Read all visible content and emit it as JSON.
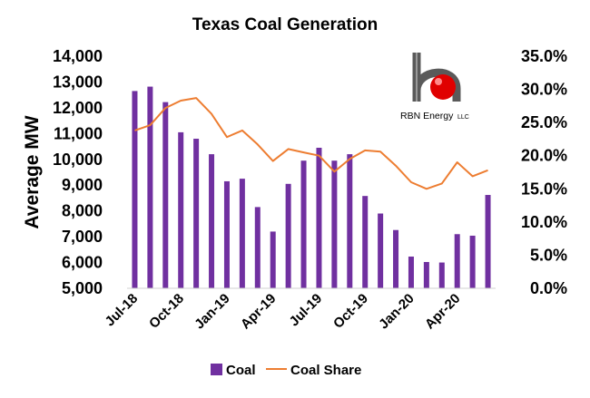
{
  "chart_data": {
    "type": "bar+line",
    "title": "Texas Coal Generation",
    "ylabel": "Average MW",
    "ylabel_right": "",
    "x_labels": [
      "Jul-18",
      "Oct-18",
      "Jan-19",
      "Apr-19",
      "Jul-19",
      "Oct-19",
      "Jan-20",
      "Apr-20"
    ],
    "x_label_month_index": [
      0,
      3,
      6,
      9,
      12,
      15,
      18,
      21
    ],
    "ylim": [
      5000,
      14000
    ],
    "yticks": [
      5000,
      6000,
      7000,
      8000,
      9000,
      10000,
      11000,
      12000,
      13000,
      14000
    ],
    "ytick_labels": [
      "5,000",
      "6,000",
      "7,000",
      "8,000",
      "9,000",
      "10,000",
      "11,000",
      "12,000",
      "13,000",
      "14,000"
    ],
    "ylim_right": [
      0,
      35
    ],
    "yticks_right": [
      0,
      5,
      10,
      15,
      20,
      25,
      30,
      35
    ],
    "ytick_labels_right": [
      "0.0%",
      "5.0%",
      "10.0%",
      "15.0%",
      "20.0%",
      "25.0%",
      "30.0%",
      "35.0%"
    ],
    "series": [
      {
        "name": "Coal",
        "type": "bar",
        "axis": "left",
        "color": "#7030A0",
        "values": [
          12650,
          12820,
          12220,
          11050,
          10800,
          10200,
          9150,
          9250,
          8150,
          7200,
          9050,
          9950,
          10450,
          9950,
          10200,
          8580,
          7900,
          7260,
          6230,
          6020,
          6000,
          7100,
          7040,
          8620
        ]
      },
      {
        "name": "Coal Share",
        "type": "line",
        "axis": "right",
        "color": "#ED7D31",
        "values": [
          23.8,
          24.6,
          27.2,
          28.3,
          28.7,
          26.3,
          22.8,
          23.8,
          21.7,
          19.2,
          21.0,
          20.5,
          20.0,
          17.6,
          19.5,
          20.8,
          20.6,
          18.5,
          16.0,
          15.0,
          15.8,
          19.0,
          16.9,
          17.8
        ]
      }
    ],
    "legend_position": "bottom",
    "grid": false
  },
  "logo": {
    "text": "RBN Energy",
    "suffix": "LLC",
    "colors": {
      "pipe": "#5a5a5a",
      "ball": "#e00000",
      "text": "#cc0000"
    }
  }
}
